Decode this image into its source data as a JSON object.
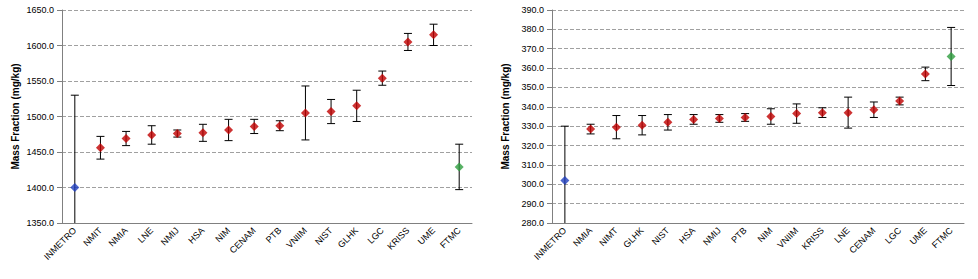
{
  "chart_data": [
    {
      "type": "scatter",
      "y_label": "Mass Fraction (mg/kg)",
      "categories": [
        "INMETRO",
        "NMIT",
        "NMIA",
        "LNE",
        "NMIJ",
        "HSA",
        "NIM",
        "CENAM",
        "PTB",
        "VNIIM",
        "NIST",
        "GLHK",
        "LGC",
        "KRISS",
        "UME",
        "FTMC"
      ],
      "values": [
        1400,
        1456,
        1469,
        1474,
        1476,
        1477,
        1481,
        1486,
        1487,
        1505,
        1507,
        1515,
        1554,
        1605,
        1615,
        1429
      ],
      "errors": [
        130,
        16,
        10,
        13,
        5,
        12,
        15,
        10,
        7,
        38,
        17,
        22,
        10,
        12,
        15,
        32
      ],
      "colors": [
        "#1f3fbf",
        "#c00000",
        "#c00000",
        "#c00000",
        "#c00000",
        "#c00000",
        "#c00000",
        "#c00000",
        "#c00000",
        "#c00000",
        "#c00000",
        "#c00000",
        "#c00000",
        "#c00000",
        "#c00000",
        "#2e9e3e"
      ],
      "marker": "diamond",
      "ylim": [
        1350,
        1650
      ],
      "yticks": [
        {
          "value": 1350,
          "label": "1350.0"
        },
        {
          "value": 1400,
          "label": "1400.0"
        },
        {
          "value": 1450,
          "label": "1450.0"
        },
        {
          "value": 1500,
          "label": "1500.0"
        },
        {
          "value": 1550,
          "label": "1550.0"
        },
        {
          "value": 1600,
          "label": "1600.0"
        },
        {
          "value": 1650,
          "label": "1650.0"
        }
      ],
      "grid": true
    },
    {
      "type": "scatter",
      "y_label": "Mass Fraction (mg/kg)",
      "categories": [
        "INMETRO",
        "NMIA",
        "NIMT",
        "GLHK",
        "NIST",
        "HSA",
        "NMIJ",
        "PTB",
        "NIM",
        "VNIIM",
        "KRISS",
        "LNE",
        "CENAM",
        "LGC",
        "UME",
        "FTMC"
      ],
      "values": [
        302,
        328.5,
        329.5,
        330.5,
        332,
        333.5,
        334,
        334.5,
        335,
        336.5,
        337,
        337,
        338.5,
        343,
        357,
        366
      ],
      "errors": [
        28,
        2.5,
        6,
        5,
        4,
        2.5,
        2,
        2,
        4,
        5,
        2.5,
        8,
        4,
        2,
        3.5,
        15
      ],
      "colors": [
        "#1f3fbf",
        "#c00000",
        "#c00000",
        "#c00000",
        "#c00000",
        "#c00000",
        "#c00000",
        "#c00000",
        "#c00000",
        "#c00000",
        "#c00000",
        "#c00000",
        "#c00000",
        "#c00000",
        "#c00000",
        "#2e9e3e"
      ],
      "marker": "diamond",
      "ylim": [
        280,
        390
      ],
      "yticks": [
        {
          "value": 280,
          "label": "280.0"
        },
        {
          "value": 290,
          "label": "290.0"
        },
        {
          "value": 300,
          "label": "300.0"
        },
        {
          "value": 310,
          "label": "310.0"
        },
        {
          "value": 320,
          "label": "320.0"
        },
        {
          "value": 330,
          "label": "330.0"
        },
        {
          "value": 340,
          "label": "340.0"
        },
        {
          "value": 350,
          "label": "350.0"
        },
        {
          "value": 360,
          "label": "360.0"
        },
        {
          "value": 370,
          "label": "370.0"
        },
        {
          "value": 380,
          "label": "380.0"
        },
        {
          "value": 390,
          "label": "390.0"
        }
      ],
      "grid": true
    }
  ]
}
